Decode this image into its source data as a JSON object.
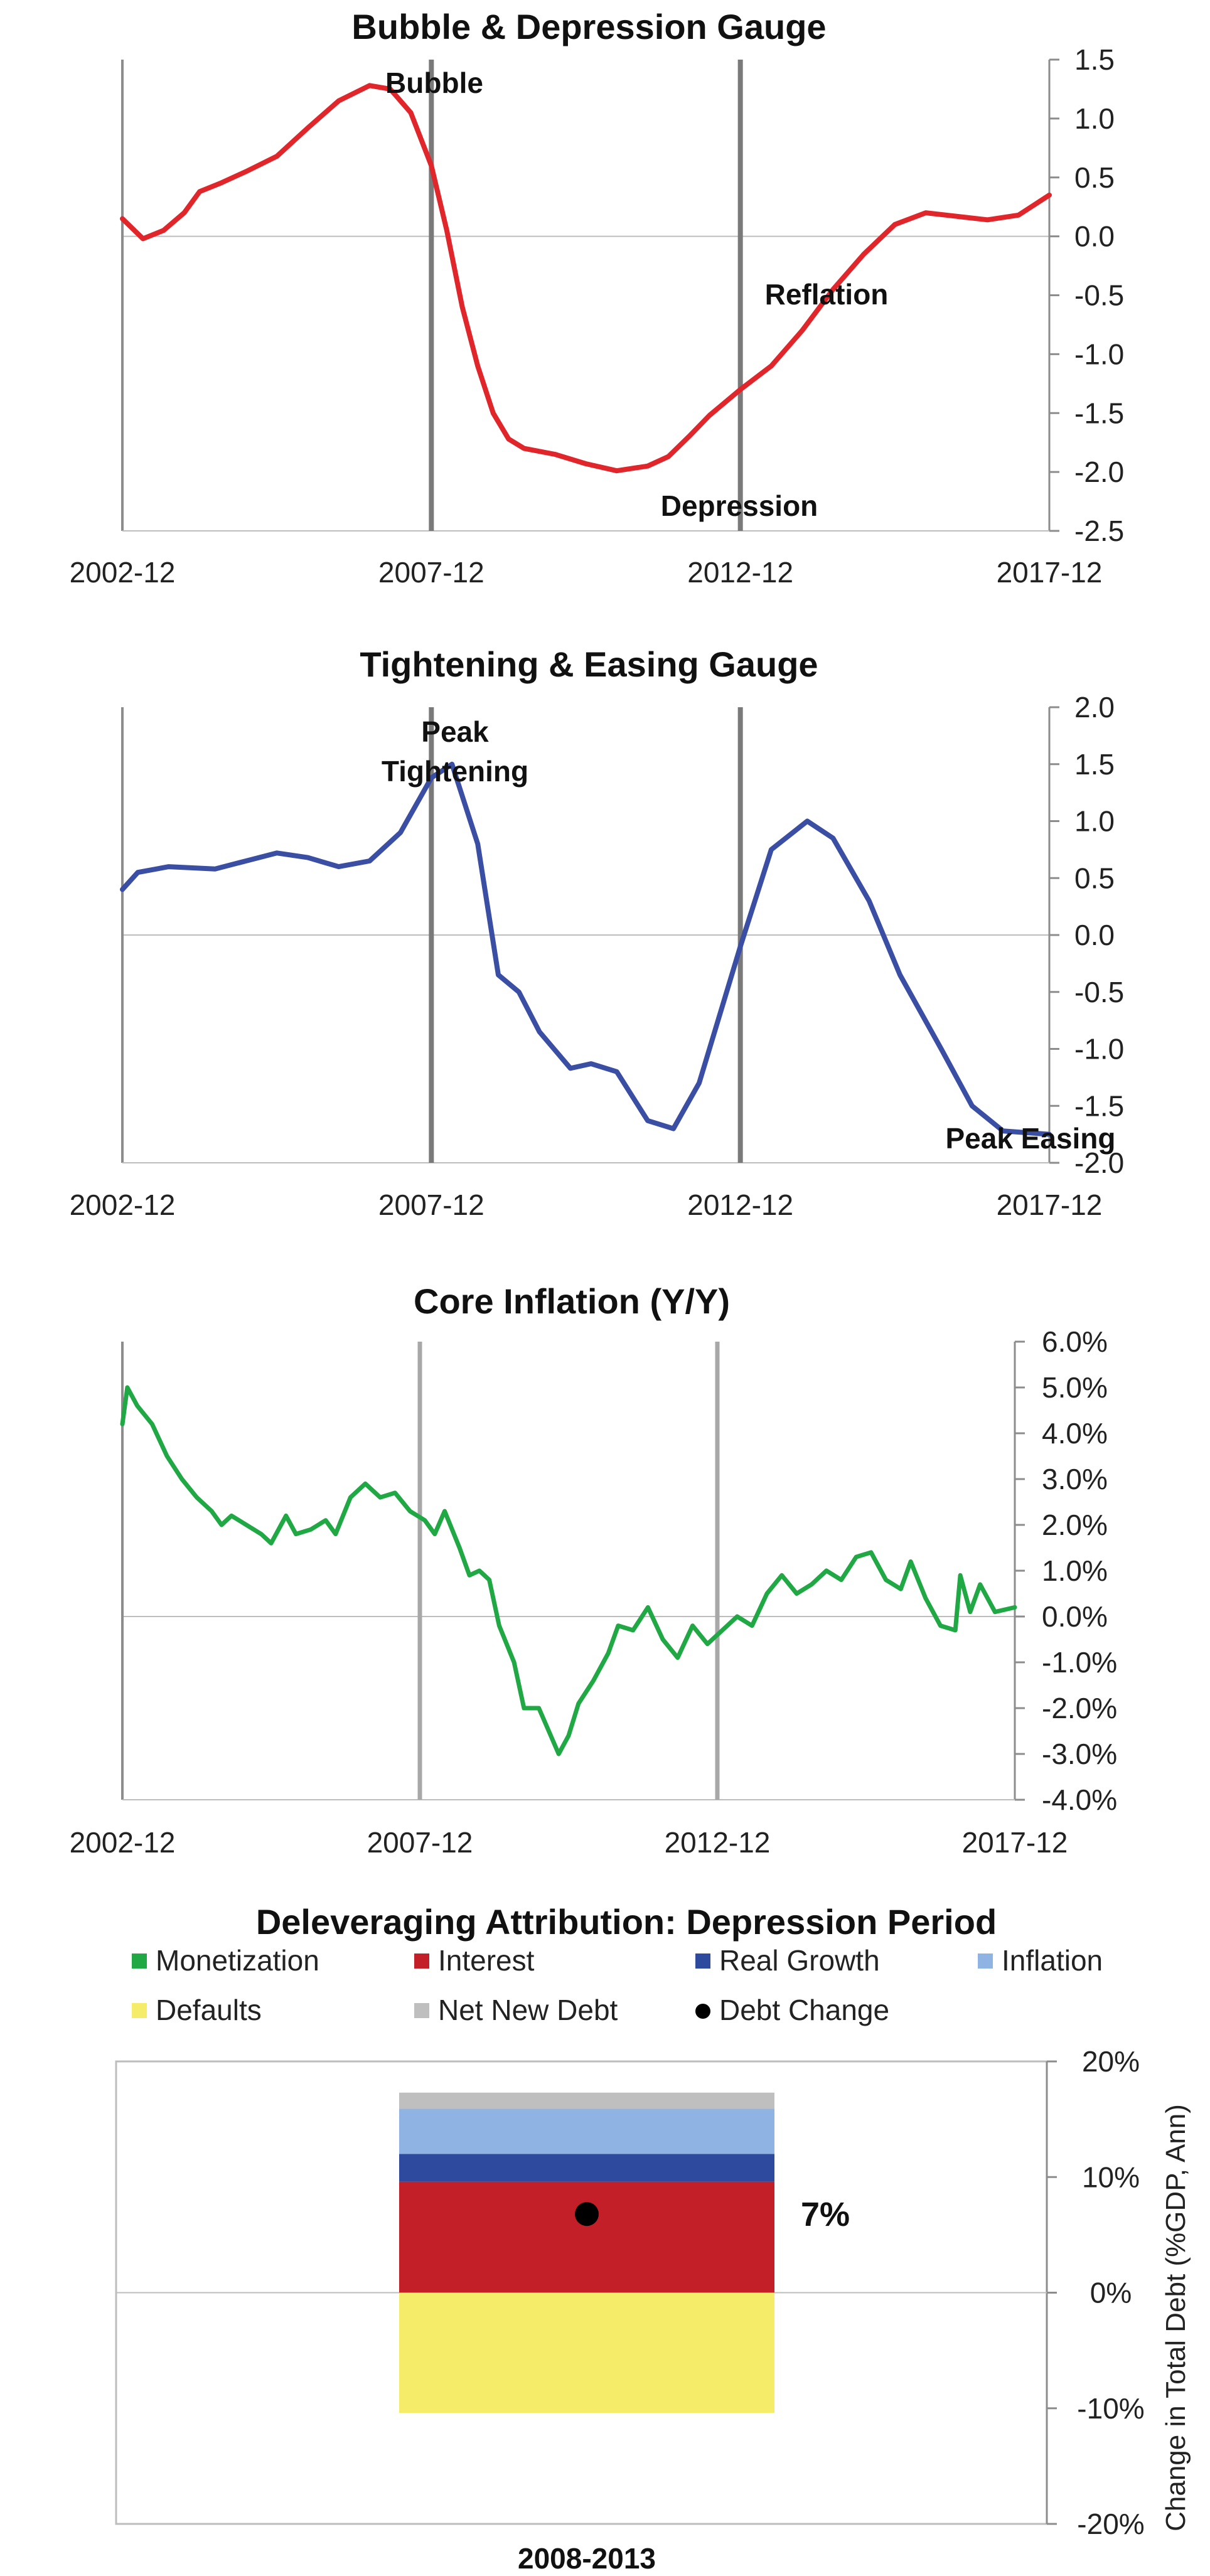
{
  "chart_data": [
    {
      "type": "line",
      "title": "Bubble & Depression Gauge",
      "x_labels": [
        "2002-12",
        "2007-12",
        "2012-12",
        "2017-12"
      ],
      "x_range": [
        "2002-12",
        "2017-12"
      ],
      "ylim": [
        -2.5,
        1.5
      ],
      "y_ticks": [
        "1.5",
        "1.0",
        "0.5",
        "0.0",
        "-0.5",
        "-1.0",
        "-1.5",
        "-2.0",
        "-2.5"
      ],
      "y_tick_values": [
        1.5,
        1.0,
        0.5,
        0.0,
        -0.5,
        -1.0,
        -1.5,
        -2.0,
        -2.5
      ],
      "vlines": [
        "2007-12",
        "2012-12"
      ],
      "annotations": [
        "Bubble",
        "Reflation",
        "Depression"
      ],
      "series": [
        {
          "color": "#e0262a",
          "points": [
            [
              "2002-12",
              0.15
            ],
            [
              "2003-04",
              -0.02
            ],
            [
              "2003-08",
              0.05
            ],
            [
              "2003-12",
              0.2
            ],
            [
              "2004-03",
              0.38
            ],
            [
              "2004-07",
              0.45
            ],
            [
              "2004-12",
              0.55
            ],
            [
              "2005-06",
              0.68
            ],
            [
              "2005-12",
              0.92
            ],
            [
              "2006-06",
              1.15
            ],
            [
              "2006-12",
              1.28
            ],
            [
              "2007-04",
              1.25
            ],
            [
              "2007-08",
              1.05
            ],
            [
              "2007-12",
              0.6
            ],
            [
              "2008-03",
              0.05
            ],
            [
              "2008-06",
              -0.6
            ],
            [
              "2008-09",
              -1.1
            ],
            [
              "2008-12",
              -1.5
            ],
            [
              "2009-03",
              -1.72
            ],
            [
              "2009-06",
              -1.8
            ],
            [
              "2009-12",
              -1.85
            ],
            [
              "2010-06",
              -1.93
            ],
            [
              "2010-12",
              -1.99
            ],
            [
              "2011-06",
              -1.95
            ],
            [
              "2011-10",
              -1.87
            ],
            [
              "2012-02",
              -1.7
            ],
            [
              "2012-06",
              -1.52
            ],
            [
              "2012-12",
              -1.3
            ],
            [
              "2013-06",
              -1.1
            ],
            [
              "2013-12",
              -0.8
            ],
            [
              "2014-06",
              -0.45
            ],
            [
              "2014-12",
              -0.15
            ],
            [
              "2015-06",
              0.1
            ],
            [
              "2015-12",
              0.2
            ],
            [
              "2016-06",
              0.17
            ],
            [
              "2016-12",
              0.14
            ],
            [
              "2017-06",
              0.18
            ],
            [
              "2017-12",
              0.35
            ]
          ]
        }
      ]
    },
    {
      "type": "line",
      "title": "Tightening & Easing Gauge",
      "x_labels": [
        "2002-12",
        "2007-12",
        "2012-12",
        "2017-12"
      ],
      "x_range": [
        "2002-12",
        "2017-12"
      ],
      "ylim": [
        -2.0,
        2.0
      ],
      "y_ticks": [
        "2.0",
        "1.5",
        "1.0",
        "0.5",
        "0.0",
        "-0.5",
        "-1.0",
        "-1.5",
        "-2.0"
      ],
      "y_tick_values": [
        2.0,
        1.5,
        1.0,
        0.5,
        0.0,
        -0.5,
        -1.0,
        -1.5,
        -2.0
      ],
      "vlines": [
        "2007-12",
        "2012-12"
      ],
      "annotations": [
        "Peak",
        "Tightening",
        "Peak Easing"
      ],
      "series": [
        {
          "color": "#3a4fa3",
          "points": [
            [
              "2002-12",
              0.4
            ],
            [
              "2003-03",
              0.55
            ],
            [
              "2003-09",
              0.6
            ],
            [
              "2004-06",
              0.58
            ],
            [
              "2004-12",
              0.65
            ],
            [
              "2005-06",
              0.72
            ],
            [
              "2005-12",
              0.68
            ],
            [
              "2006-06",
              0.6
            ],
            [
              "2006-12",
              0.65
            ],
            [
              "2007-06",
              0.9
            ],
            [
              "2007-12",
              1.38
            ],
            [
              "2008-04",
              1.5
            ],
            [
              "2008-09",
              0.8
            ],
            [
              "2009-01",
              -0.35
            ],
            [
              "2009-05",
              -0.5
            ],
            [
              "2009-09",
              -0.85
            ],
            [
              "2010-03",
              -1.17
            ],
            [
              "2010-07",
              -1.13
            ],
            [
              "2010-12",
              -1.2
            ],
            [
              "2011-06",
              -1.63
            ],
            [
              "2011-11",
              -1.7
            ],
            [
              "2012-04",
              -1.3
            ],
            [
              "2012-12",
              -0.1
            ],
            [
              "2013-06",
              0.75
            ],
            [
              "2014-01",
              1.0
            ],
            [
              "2014-06",
              0.85
            ],
            [
              "2015-01",
              0.3
            ],
            [
              "2015-07",
              -0.35
            ],
            [
              "2016-03",
              -1.0
            ],
            [
              "2016-09",
              -1.5
            ],
            [
              "2017-03",
              -1.72
            ],
            [
              "2017-12",
              -1.75
            ]
          ]
        }
      ]
    },
    {
      "type": "line",
      "title": "Core Inflation (Y/Y)",
      "x_labels": [
        "2002-12",
        "2007-12",
        "2012-12",
        "2017-12"
      ],
      "x_range": [
        "2002-12",
        "2017-12"
      ],
      "ylim": [
        -4.0,
        6.0
      ],
      "y_unit": "%",
      "y_ticks": [
        "6.0%",
        "5.0%",
        "4.0%",
        "3.0%",
        "2.0%",
        "1.0%",
        "0.0%",
        "-1.0%",
        "-2.0%",
        "-3.0%",
        "-4.0%"
      ],
      "y_tick_values": [
        6.0,
        5.0,
        4.0,
        3.0,
        2.0,
        1.0,
        0.0,
        -1.0,
        -2.0,
        -3.0,
        -4.0
      ],
      "vlines": [
        "2007-12",
        "2012-12"
      ],
      "series": [
        {
          "color": "#1fa843",
          "points": [
            [
              "2002-12",
              4.2
            ],
            [
              "2003-01",
              5.0
            ],
            [
              "2003-03",
              4.6
            ],
            [
              "2003-06",
              4.2
            ],
            [
              "2003-09",
              3.5
            ],
            [
              "2003-12",
              3.0
            ],
            [
              "2004-03",
              2.6
            ],
            [
              "2004-06",
              2.3
            ],
            [
              "2004-08",
              2.0
            ],
            [
              "2004-10",
              2.2
            ],
            [
              "2005-01",
              2.0
            ],
            [
              "2005-04",
              1.8
            ],
            [
              "2005-06",
              1.6
            ],
            [
              "2005-09",
              2.2
            ],
            [
              "2005-11",
              1.8
            ],
            [
              "2006-02",
              1.9
            ],
            [
              "2006-05",
              2.1
            ],
            [
              "2006-07",
              1.8
            ],
            [
              "2006-10",
              2.6
            ],
            [
              "2007-01",
              2.9
            ],
            [
              "2007-04",
              2.6
            ],
            [
              "2007-07",
              2.7
            ],
            [
              "2007-10",
              2.3
            ],
            [
              "2008-01",
              2.1
            ],
            [
              "2008-03",
              1.8
            ],
            [
              "2008-05",
              2.3
            ],
            [
              "2008-08",
              1.5
            ],
            [
              "2008-10",
              0.9
            ],
            [
              "2008-12",
              1.0
            ],
            [
              "2009-02",
              0.8
            ],
            [
              "2009-04",
              -0.2
            ],
            [
              "2009-07",
              -1.0
            ],
            [
              "2009-09",
              -2.0
            ],
            [
              "2009-12",
              -2.0
            ],
            [
              "2010-02",
              -2.5
            ],
            [
              "2010-04",
              -3.0
            ],
            [
              "2010-06",
              -2.6
            ],
            [
              "2010-08",
              -1.9
            ],
            [
              "2010-11",
              -1.4
            ],
            [
              "2011-02",
              -0.8
            ],
            [
              "2011-04",
              -0.2
            ],
            [
              "2011-07",
              -0.3
            ],
            [
              "2011-10",
              0.2
            ],
            [
              "2012-01",
              -0.5
            ],
            [
              "2012-04",
              -0.9
            ],
            [
              "2012-07",
              -0.2
            ],
            [
              "2012-10",
              -0.6
            ],
            [
              "2013-01",
              -0.3
            ],
            [
              "2013-04",
              0.0
            ],
            [
              "2013-07",
              -0.2
            ],
            [
              "2013-10",
              0.5
            ],
            [
              "2014-01",
              0.9
            ],
            [
              "2014-04",
              0.5
            ],
            [
              "2014-07",
              0.7
            ],
            [
              "2014-10",
              1.0
            ],
            [
              "2015-01",
              0.8
            ],
            [
              "2015-04",
              1.3
            ],
            [
              "2015-07",
              1.4
            ],
            [
              "2015-10",
              0.8
            ],
            [
              "2016-01",
              0.6
            ],
            [
              "2016-03",
              1.2
            ],
            [
              "2016-06",
              0.4
            ],
            [
              "2016-09",
              -0.2
            ],
            [
              "2016-12",
              -0.3
            ],
            [
              "2017-01",
              0.9
            ],
            [
              "2017-03",
              0.1
            ],
            [
              "2017-05",
              0.7
            ],
            [
              "2017-08",
              0.1
            ],
            [
              "2017-12",
              0.2
            ]
          ]
        }
      ]
    },
    {
      "type": "bar",
      "title": "Deleveraging Attribution: Depression Period",
      "categories": [
        "2008-2013"
      ],
      "ylim": [
        -20,
        20
      ],
      "y_ticks": [
        "20%",
        "10%",
        "0%",
        "-10%",
        "-20%"
      ],
      "y_tick_values": [
        20,
        10,
        0,
        -10,
        -20
      ],
      "ylabel": "Change in Total Debt (%GDP, Ann)",
      "legend_position": "top",
      "legend": [
        {
          "name": "Monetization",
          "color": "#1fa843",
          "marker": "square"
        },
        {
          "name": "Interest",
          "color": "#c21f28",
          "marker": "square"
        },
        {
          "name": "Real Growth",
          "color": "#2e4a9e",
          "marker": "square"
        },
        {
          "name": "Inflation",
          "color": "#8fb3e3",
          "marker": "square"
        },
        {
          "name": "Defaults",
          "color": "#f5ec6a",
          "marker": "square"
        },
        {
          "name": "Net New Debt",
          "color": "#bfbfbf",
          "marker": "square"
        },
        {
          "name": "Debt Change",
          "color": "#000000",
          "marker": "dot"
        }
      ],
      "series": [
        {
          "name": "Monetization",
          "values": [
            0.0
          ]
        },
        {
          "name": "Interest",
          "values": [
            9.6
          ]
        },
        {
          "name": "Real Growth",
          "values": [
            2.4
          ]
        },
        {
          "name": "Inflation",
          "values": [
            3.9
          ]
        },
        {
          "name": "Defaults",
          "values": [
            -10.4
          ]
        },
        {
          "name": "Net New Debt",
          "values": [
            1.4
          ]
        }
      ],
      "debt_change": {
        "value": 6.8,
        "label": "7%"
      }
    }
  ]
}
